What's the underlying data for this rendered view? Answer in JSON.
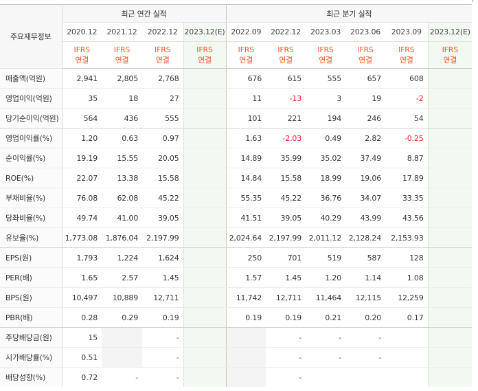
{
  "header": {
    "label_column": "주요재무정보",
    "annual_group": "최근 연간 실적",
    "quarterly_group": "최근 분기 실적",
    "periods": [
      "2020.12",
      "2021.12",
      "2022.12",
      "2023.12(E)",
      "2022.09",
      "2022.12",
      "2023.03",
      "2023.06",
      "2023.09",
      "2023.12(E)"
    ],
    "ifrs_line1": "IFRS",
    "ifrs_line2": "연결"
  },
  "rows": [
    {
      "label": "매출액(억원)",
      "values": [
        "2,941",
        "2,805",
        "2,768",
        "",
        "676",
        "615",
        "555",
        "657",
        "608",
        ""
      ]
    },
    {
      "label": "영업이익(억원)",
      "values": [
        "35",
        "18",
        "27",
        "",
        "11",
        "-13",
        "3",
        "19",
        "-2",
        ""
      ]
    },
    {
      "label": "당기순이익(억원)",
      "values": [
        "564",
        "436",
        "555",
        "",
        "101",
        "221",
        "194",
        "246",
        "54",
        ""
      ]
    },
    {
      "label": "영업이익률(%)",
      "values": [
        "1.20",
        "0.63",
        "0.97",
        "",
        "1.63",
        "-2.03",
        "0.49",
        "2.82",
        "-0.25",
        ""
      ]
    },
    {
      "label": "순이익률(%)",
      "values": [
        "19.19",
        "15.55",
        "20.05",
        "",
        "14.89",
        "35.99",
        "35.02",
        "37.49",
        "8.87",
        ""
      ]
    },
    {
      "label": "ROE(%)",
      "values": [
        "22.07",
        "13.38",
        "15.58",
        "",
        "14.84",
        "15.58",
        "18.99",
        "19.06",
        "17.89",
        ""
      ]
    },
    {
      "label": "부채비율(%)",
      "values": [
        "76.08",
        "62.08",
        "45.22",
        "",
        "55.35",
        "45.22",
        "36.76",
        "34.07",
        "33.35",
        ""
      ]
    },
    {
      "label": "당좌비율(%)",
      "values": [
        "49.74",
        "41.00",
        "39.05",
        "",
        "41.51",
        "39.05",
        "40.29",
        "43.99",
        "43.56",
        ""
      ]
    },
    {
      "label": "유보율(%)",
      "values": [
        "1,773.08",
        "1,876.04",
        "2,197.99",
        "",
        "2,024.64",
        "2,197.99",
        "2,011.12",
        "2,128.24",
        "2,153.93",
        ""
      ]
    },
    {
      "label": "EPS(원)",
      "values": [
        "1,793",
        "1,224",
        "1,624",
        "",
        "250",
        "701",
        "519",
        "587",
        "128",
        ""
      ]
    },
    {
      "label": "PER(배)",
      "values": [
        "1.65",
        "2.57",
        "1.45",
        "",
        "1.57",
        "1.45",
        "1.20",
        "1.14",
        "1.08",
        ""
      ]
    },
    {
      "label": "BPS(원)",
      "values": [
        "10,497",
        "10,889",
        "12,711",
        "",
        "11,742",
        "12,711",
        "11,464",
        "12,115",
        "12,259",
        ""
      ]
    },
    {
      "label": "PBR(배)",
      "values": [
        "0.28",
        "0.29",
        "0.19",
        "",
        "0.19",
        "0.19",
        "0.21",
        "0.20",
        "0.17",
        ""
      ]
    },
    {
      "label": "주당배당금(원)",
      "values": [
        "15",
        "",
        "-",
        "",
        "",
        "-",
        "-",
        "-",
        "",
        ""
      ]
    },
    {
      "label": "시가배당률(%)",
      "values": [
        "0.51",
        "",
        "-",
        "",
        "",
        "-",
        "-",
        "-",
        "",
        ""
      ]
    },
    {
      "label": "배당성향(%)",
      "values": [
        "0.72",
        "-",
        "-",
        "",
        "",
        "-",
        "",
        "",
        "",
        ""
      ]
    }
  ],
  "colors": {
    "negative": "#e2232a",
    "ifrs": "#ef5a24",
    "estimate_bg": "#f3f9f1",
    "estimate_label": "#3a8a2e"
  }
}
